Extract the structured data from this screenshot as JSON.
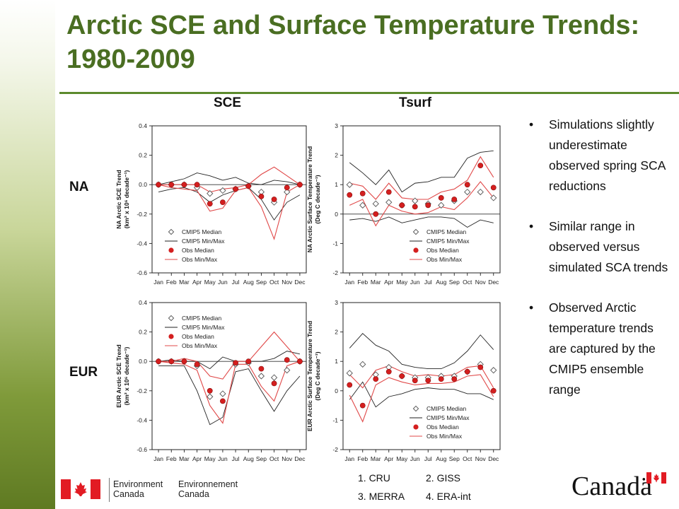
{
  "slide": {
    "title": "Arctic SCE and Surface Temperature Trends: 1980-2009",
    "columns": [
      "SCE",
      "Tsurf"
    ],
    "rows": [
      "NA",
      "EUR"
    ],
    "bullets": [
      "Simulations slightly underestimate observed spring SCA reductions",
      "Similar range in observed versus simulated SCA trends",
      "Observed Arctic temperature trends are captured by the CMIP5 ensemble range"
    ],
    "bullet_glyph": "•",
    "dataset_notes": [
      "1. CRU",
      "2. GISS",
      "3. MERRA",
      "4. ERA-int"
    ],
    "footer": {
      "org_en_1": "Environment",
      "org_en_2": "Canada",
      "org_fr_1": "Environnement",
      "org_fr_2": "Canada",
      "wordmark": "Canadä"
    }
  },
  "colors": {
    "title_green": "#4a6e22",
    "min_max_model": "#222222",
    "obs_median": "#d41f1f",
    "obs_min_max": "#e04848",
    "canada_red": "#e21b23"
  },
  "chart_data": [
    {
      "id": "na-sce",
      "type": "line",
      "ylabel": "NA Arctic SCE Trend (km2 x 10^6 decade-1)",
      "ylabel_lines": [
        "NA Arctic SCE Trend",
        "(km² x 10⁶ decade⁻¹)"
      ],
      "categories": [
        "Jan",
        "Feb",
        "Mar",
        "Apr",
        "May",
        "Jun",
        "Jul",
        "Aug",
        "Sep",
        "Oct",
        "Nov",
        "Dec"
      ],
      "ylim": [
        -0.6,
        0.4
      ],
      "yticks": [
        -0.6,
        -0.4,
        -0.2,
        0.0,
        0.2,
        0.4
      ],
      "ytick_labels": [
        "-0.6",
        "-0.4",
        "-0.2",
        "0.0",
        "0.2",
        "0.4"
      ],
      "zero_line": true,
      "legend_position": "bottom-left",
      "legend": [
        "CMIP5 Median",
        "CMIP5 Min/Max",
        "Obs Median",
        "Obs Min/Max"
      ],
      "series": [
        {
          "name": "CMIP5 Median",
          "kind": "diamond",
          "values": [
            0.0,
            0.0,
            0.0,
            -0.02,
            -0.06,
            -0.04,
            -0.03,
            -0.01,
            -0.05,
            -0.12,
            -0.05,
            0.0
          ]
        },
        {
          "name": "CMIP5 Min/Max",
          "kind": "line",
          "role": "max",
          "values": [
            0.0,
            0.02,
            0.04,
            0.08,
            0.06,
            0.03,
            0.05,
            0.01,
            0.0,
            0.03,
            0.02,
            0.0
          ]
        },
        {
          "name": "CMIP5 Min/Max",
          "kind": "line",
          "role": "min",
          "values": [
            -0.05,
            -0.03,
            -0.02,
            -0.05,
            -0.12,
            -0.07,
            -0.04,
            -0.02,
            -0.1,
            -0.24,
            -0.12,
            -0.07
          ]
        },
        {
          "name": "Obs Median",
          "kind": "dot",
          "values": [
            0.0,
            0.0,
            0.0,
            0.0,
            -0.13,
            -0.12,
            -0.03,
            -0.01,
            -0.08,
            -0.1,
            -0.02,
            0.0
          ]
        },
        {
          "name": "Obs Min/Max",
          "kind": "line",
          "role": "max",
          "values": [
            0.0,
            0.0,
            0.0,
            0.0,
            -0.05,
            -0.03,
            -0.02,
            0.0,
            0.07,
            0.12,
            0.06,
            0.0
          ]
        },
        {
          "name": "Obs Min/Max",
          "kind": "line",
          "role": "min",
          "values": [
            0.0,
            -0.02,
            -0.03,
            -0.04,
            -0.18,
            -0.16,
            -0.04,
            -0.02,
            -0.15,
            -0.37,
            -0.05,
            0.0
          ]
        }
      ]
    },
    {
      "id": "na-tsurf",
      "type": "line",
      "ylabel": "NA Arctic Surface Temperature Trend (Deg C decade-1)",
      "ylabel_lines": [
        "NA Arctic Surface Temperature Trend",
        "(Deg C decade⁻¹)"
      ],
      "categories": [
        "Jan",
        "Feb",
        "Mar",
        "Apr",
        "May",
        "Jun",
        "Jul",
        "Aug",
        "Sep",
        "Oct",
        "Nov",
        "Dec"
      ],
      "ylim": [
        -2,
        3
      ],
      "yticks": [
        -2,
        -1,
        0,
        1,
        2,
        3
      ],
      "ytick_labels": [
        "-2",
        "-1",
        "0",
        "1",
        "2",
        "3"
      ],
      "zero_line": true,
      "legend_position": "bottom-right",
      "legend": [
        "CMIP5 Median",
        "CMIP5 Min/Max",
        "Obs Median",
        "Obs Min/Max"
      ],
      "series": [
        {
          "name": "CMIP5 Median",
          "kind": "diamond",
          "values": [
            1.0,
            0.3,
            0.35,
            0.4,
            0.3,
            0.45,
            0.35,
            0.3,
            0.45,
            0.75,
            0.75,
            0.55
          ]
        },
        {
          "name": "CMIP5 Min/Max",
          "kind": "line",
          "role": "max",
          "values": [
            1.75,
            1.4,
            1.0,
            1.5,
            0.75,
            1.05,
            1.1,
            1.25,
            1.25,
            1.9,
            2.1,
            2.15
          ]
        },
        {
          "name": "CMIP5 Min/Max",
          "kind": "line",
          "role": "min",
          "values": [
            -0.2,
            -0.15,
            -0.25,
            -0.1,
            -0.3,
            -0.2,
            -0.1,
            -0.1,
            -0.15,
            -0.45,
            -0.2,
            -0.3
          ]
        },
        {
          "name": "Obs Median",
          "kind": "dot",
          "values": [
            0.65,
            0.7,
            0.0,
            0.75,
            0.3,
            0.25,
            0.3,
            0.55,
            0.5,
            1.0,
            1.65,
            0.9
          ]
        },
        {
          "name": "Obs Min/Max",
          "kind": "line",
          "role": "max",
          "values": [
            1.05,
            0.95,
            0.5,
            1.05,
            0.55,
            0.5,
            0.5,
            0.75,
            0.85,
            1.15,
            1.95,
            1.25
          ]
        },
        {
          "name": "Obs Min/Max",
          "kind": "line",
          "role": "min",
          "values": [
            0.3,
            0.5,
            -0.4,
            0.3,
            0.1,
            0.0,
            0.05,
            0.25,
            0.15,
            0.55,
            1.1,
            0.55
          ]
        }
      ]
    },
    {
      "id": "eur-sce",
      "type": "line",
      "ylabel": "EUR Arctic SCE Trend (km2 x 10^6 decade-1)",
      "ylabel_lines": [
        "EUR Arctic SCE Trend",
        "(km² x 10⁶ decade⁻¹)"
      ],
      "categories": [
        "Jan",
        "Feb",
        "Mar",
        "Apr",
        "May",
        "Jun",
        "Jul",
        "Aug",
        "Sep",
        "Oct",
        "Nov",
        "Dec"
      ],
      "ylim": [
        -0.6,
        0.4
      ],
      "yticks": [
        -0.6,
        -0.4,
        -0.2,
        0.0,
        0.2,
        0.4
      ],
      "ytick_labels": [
        "-0.6",
        "-0.4",
        "-0.2",
        "0.0",
        "0.2",
        "0.4"
      ],
      "zero_line": true,
      "legend_position": "top-left",
      "legend": [
        "CMIP5 Median",
        "CMIP5 Min/Max",
        "Obs Median",
        "Obs Min/Max"
      ],
      "series": [
        {
          "name": "CMIP5 Median",
          "kind": "diamond",
          "values": [
            0.0,
            0.0,
            0.0,
            -0.03,
            -0.24,
            -0.22,
            -0.02,
            -0.01,
            -0.1,
            -0.11,
            -0.06,
            0.0
          ]
        },
        {
          "name": "CMIP5 Min/Max",
          "kind": "line",
          "role": "max",
          "values": [
            0.0,
            0.01,
            0.0,
            0.0,
            -0.05,
            0.03,
            0.0,
            0.0,
            0.0,
            0.02,
            0.07,
            0.05
          ]
        },
        {
          "name": "CMIP5 Min/Max",
          "kind": "line",
          "role": "min",
          "values": [
            -0.03,
            -0.03,
            -0.03,
            -0.2,
            -0.43,
            -0.38,
            -0.07,
            -0.05,
            -0.2,
            -0.34,
            -0.2,
            -0.1
          ]
        },
        {
          "name": "Obs Median",
          "kind": "dot",
          "values": [
            0.0,
            0.0,
            0.0,
            -0.02,
            -0.2,
            -0.27,
            -0.01,
            0.0,
            -0.05,
            -0.15,
            0.01,
            0.0
          ]
        },
        {
          "name": "Obs Min/Max",
          "kind": "line",
          "role": "max",
          "values": [
            0.0,
            0.0,
            0.02,
            0.0,
            -0.1,
            -0.12,
            0.0,
            0.0,
            0.1,
            0.2,
            0.1,
            0.0
          ]
        },
        {
          "name": "Obs Min/Max",
          "kind": "line",
          "role": "min",
          "values": [
            0.0,
            -0.01,
            -0.02,
            -0.06,
            -0.3,
            -0.42,
            -0.02,
            -0.02,
            -0.17,
            -0.27,
            -0.03,
            0.0
          ]
        }
      ]
    },
    {
      "id": "eur-tsurf",
      "type": "line",
      "ylabel": "EUR Arctic Surface Temperature Trend (Deg C decade-1)",
      "ylabel_lines": [
        "EUR Arctic Surface Temperature Trend",
        "(Deg C decade⁻¹)"
      ],
      "categories": [
        "Jan",
        "Feb",
        "Mar",
        "Apr",
        "May",
        "Jun",
        "Jul",
        "Aug",
        "Sep",
        "Oct",
        "Nov",
        "Dec"
      ],
      "ylim": [
        -2,
        3
      ],
      "yticks": [
        -2,
        -1,
        0,
        1,
        2,
        3
      ],
      "ytick_labels": [
        "-2",
        "-1",
        "0",
        "1",
        "2",
        "3"
      ],
      "zero_line": false,
      "legend_position": "bottom-right",
      "legend": [
        "CMIP5 Median",
        "CMIP5 Min/Max",
        "Obs Median",
        "Obs Min/Max"
      ],
      "series": [
        {
          "name": "CMIP5 Median",
          "kind": "diamond",
          "values": [
            0.6,
            0.9,
            0.55,
            0.8,
            0.5,
            0.45,
            0.45,
            0.5,
            0.5,
            0.65,
            0.9,
            0.7
          ]
        },
        {
          "name": "CMIP5 Min/Max",
          "kind": "line",
          "role": "max",
          "values": [
            1.45,
            1.95,
            1.55,
            1.35,
            0.9,
            0.8,
            0.75,
            0.75,
            0.95,
            1.35,
            1.9,
            1.4
          ]
        },
        {
          "name": "CMIP5 Min/Max",
          "kind": "line",
          "role": "min",
          "values": [
            -0.3,
            0.3,
            -0.55,
            -0.2,
            -0.1,
            0.05,
            0.1,
            0.05,
            0.05,
            -0.1,
            -0.1,
            -0.3
          ]
        },
        {
          "name": "Obs Median",
          "kind": "dot",
          "values": [
            0.2,
            -0.5,
            0.4,
            0.65,
            0.5,
            0.35,
            0.35,
            0.4,
            0.4,
            0.65,
            0.8,
            0.0
          ]
        },
        {
          "name": "Obs Min/Max",
          "kind": "line",
          "role": "max",
          "values": [
            0.55,
            0.1,
            0.7,
            0.85,
            0.65,
            0.5,
            0.55,
            0.5,
            0.55,
            0.8,
            0.85,
            0.1
          ]
        },
        {
          "name": "Obs Min/Max",
          "kind": "line",
          "role": "min",
          "values": [
            -0.15,
            -1.05,
            0.2,
            0.45,
            0.3,
            0.2,
            0.25,
            0.25,
            0.3,
            0.5,
            0.55,
            -0.2
          ]
        }
      ]
    }
  ]
}
